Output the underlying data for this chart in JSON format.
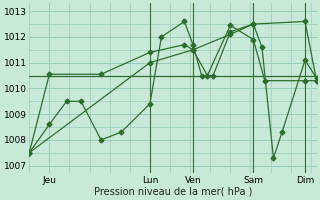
{
  "title": "",
  "xlabel": "Pression niveau de la mer( hPa )",
  "ylabel": "",
  "bg_color": "#c8e8d8",
  "grid_color": "#99ccbb",
  "line_color": "#2d6e2d",
  "ylim": [
    1006.7,
    1013.3
  ],
  "yticks": [
    1007,
    1008,
    1009,
    1010,
    1011,
    1012,
    1013
  ],
  "xlim": [
    0,
    100
  ],
  "day_ticks_x": [
    7,
    42,
    57,
    78,
    96
  ],
  "day_labels": [
    "Jeu",
    "Lun",
    "Ven",
    "Sam",
    "Dim"
  ],
  "vlines_x": [
    42,
    57,
    78,
    96
  ],
  "series_zigzag": {
    "x": [
      0,
      7,
      13,
      18,
      25,
      32,
      42,
      46,
      54,
      57,
      60,
      64,
      70,
      78,
      81,
      85,
      88,
      96,
      100
    ],
    "y": [
      1007.5,
      1008.6,
      1009.5,
      1009.5,
      1008.0,
      1008.3,
      1009.4,
      1012.0,
      1012.6,
      1011.7,
      1010.5,
      1010.5,
      1012.2,
      1012.5,
      1011.6,
      1007.3,
      1008.3,
      1011.1,
      1010.4
    ]
  },
  "series_mid": {
    "x": [
      0,
      7,
      25,
      42,
      54,
      57,
      62,
      70,
      78,
      82,
      96,
      100
    ],
    "y": [
      1007.5,
      1010.55,
      1010.55,
      1011.4,
      1011.7,
      1011.5,
      1010.5,
      1012.45,
      1011.9,
      1010.3,
      1010.3,
      1010.3
    ]
  },
  "series_trend": {
    "x": [
      0,
      42,
      57,
      70,
      78,
      96,
      100
    ],
    "y": [
      1007.5,
      1011.0,
      1011.5,
      1012.1,
      1012.5,
      1012.6,
      1010.3
    ]
  },
  "series_flat": {
    "x": [
      0,
      7,
      100
    ],
    "y": [
      1010.5,
      1010.5,
      1010.5
    ]
  }
}
